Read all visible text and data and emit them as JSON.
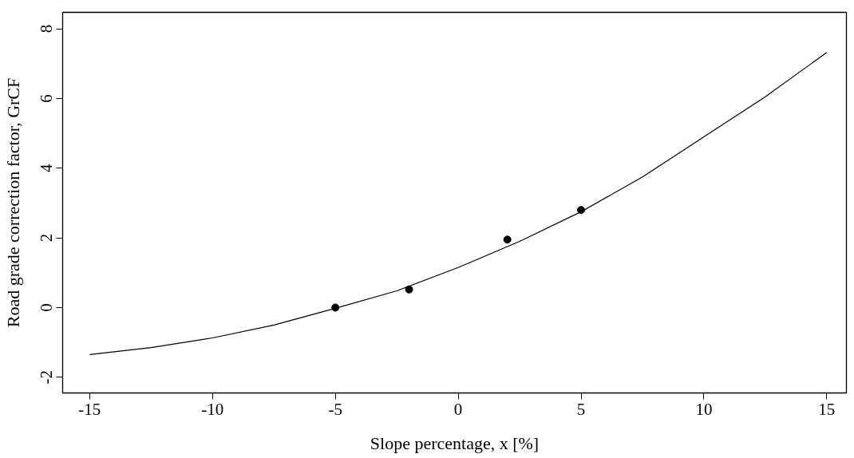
{
  "chart_data": {
    "type": "scatter",
    "xlabel": "Slope percentage, x [%]",
    "ylabel": "Road grade correction factor, GrCF",
    "xlim": [
      -16.1,
      15.8
    ],
    "ylim": [
      -2.45,
      8.47
    ],
    "xticks": [
      -15,
      -10,
      -5,
      0,
      5,
      10,
      15
    ],
    "yticks": [
      -2,
      0,
      2,
      4,
      6,
      8
    ],
    "grid": false,
    "series": [
      {
        "type": "line",
        "color": "#000000",
        "marker": "none",
        "line_style": "solid",
        "x": [
          -15,
          -12.5,
          -10,
          -7.5,
          -5,
          -2.5,
          0,
          2.5,
          5,
          7.5,
          10,
          12.5,
          15
        ],
        "values": [
          -1.35,
          -1.15,
          -0.87,
          -0.5,
          -0.02,
          0.48,
          1.15,
          1.9,
          2.75,
          3.75,
          4.9,
          6.05,
          7.32
        ]
      },
      {
        "color": "#000000",
        "marker": "circle",
        "x": [
          -5,
          -2,
          2,
          5
        ],
        "values": [
          0,
          0.52,
          1.95,
          2.8
        ]
      }
    ]
  }
}
